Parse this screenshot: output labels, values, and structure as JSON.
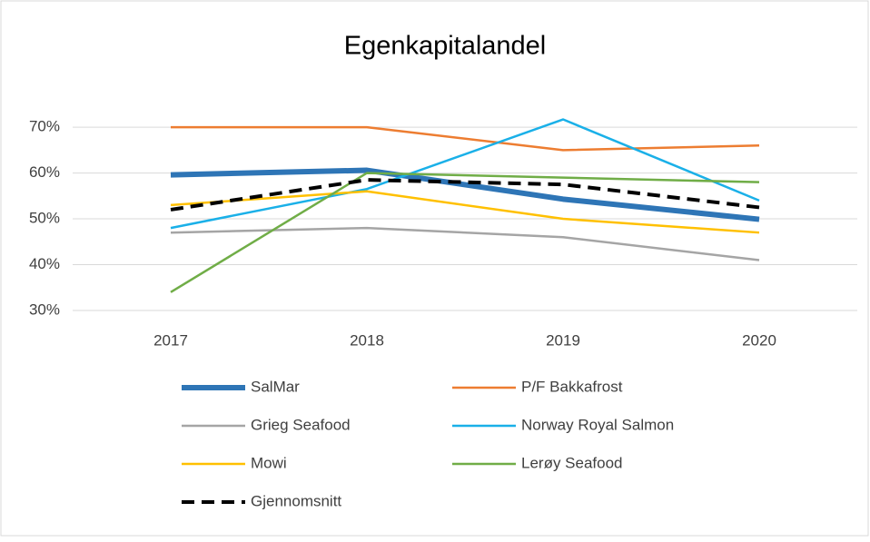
{
  "chart_data": {
    "type": "line",
    "title": "Egenkapitalandel",
    "categories": [
      "2017",
      "2018",
      "2019",
      "2020"
    ],
    "series": [
      {
        "name": "SalMar",
        "color": "#2e75b6",
        "width": 6,
        "dash": false,
        "values": [
          59.6,
          60.6,
          54.3,
          49.9
        ]
      },
      {
        "name": "P/F Bakkafrost",
        "color": "#ed7d31",
        "width": 2.5,
        "dash": false,
        "values": [
          70,
          70,
          65,
          66
        ]
      },
      {
        "name": "Grieg Seafood",
        "color": "#a5a5a5",
        "width": 2.5,
        "dash": false,
        "values": [
          47,
          48,
          46,
          41
        ]
      },
      {
        "name": "Norway Royal Salmon",
        "color": "#1ab0e8",
        "width": 2.5,
        "dash": false,
        "values": [
          48,
          56.5,
          71.7,
          54
        ]
      },
      {
        "name": "Mowi",
        "color": "#ffc000",
        "width": 2.5,
        "dash": false,
        "values": [
          53,
          56,
          50,
          47
        ]
      },
      {
        "name": "Lerøy Seafood",
        "color": "#70ad47",
        "width": 2.5,
        "dash": false,
        "values": [
          34,
          60,
          59,
          58
        ]
      },
      {
        "name": "Gjennomsnitt",
        "color": "#000000",
        "width": 4,
        "dash": true,
        "values": [
          52,
          58.5,
          57.5,
          52.5
        ]
      }
    ],
    "ylim": [
      30,
      72
    ],
    "yticks": [
      {
        "value": 30,
        "label": "30%"
      },
      {
        "value": 40,
        "label": "40%"
      },
      {
        "value": 50,
        "label": "50%"
      },
      {
        "value": 60,
        "label": "60%"
      },
      {
        "value": 70,
        "label": "70%"
      }
    ],
    "grid": true,
    "legend": "bottom"
  }
}
